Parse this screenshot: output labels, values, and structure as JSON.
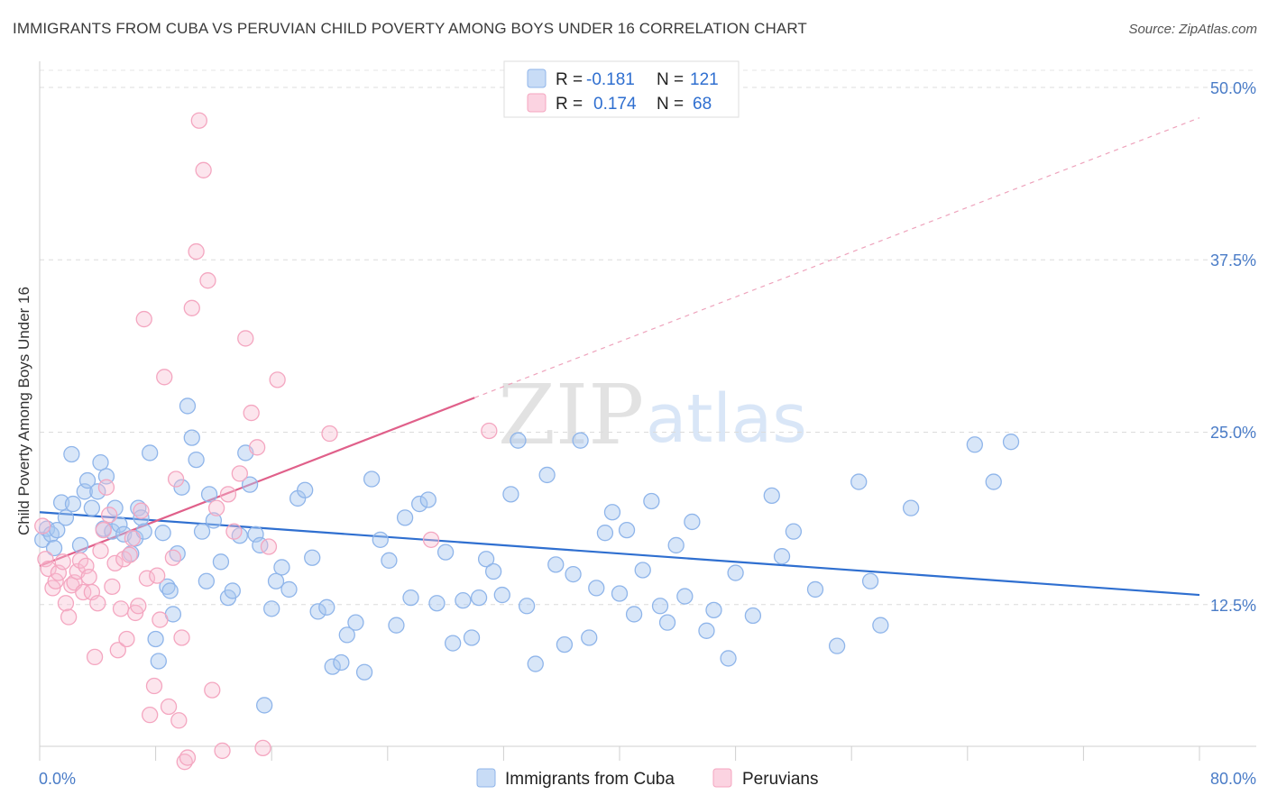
{
  "header": {
    "title": "IMMIGRANTS FROM CUBA VS PERUVIAN CHILD POVERTY AMONG BOYS UNDER 16 CORRELATION CHART",
    "source": "Source: ZipAtlas.com"
  },
  "watermark": {
    "zip": "ZIP",
    "atlas": "atlas"
  },
  "legend": {
    "rows": [
      {
        "r_label": "R =",
        "r_value": "-0.181",
        "n_label": "N =",
        "n_value": "121"
      },
      {
        "r_label": "R =",
        "r_value": "0.174",
        "n_label": "N =",
        "n_value": "68"
      }
    ]
  },
  "bottom_legend": {
    "items": [
      {
        "label": "Immigrants from Cuba"
      },
      {
        "label": "Peruvians"
      }
    ]
  },
  "chart_data": {
    "type": "scatter",
    "title": "IMMIGRANTS FROM CUBA VS PERUVIAN CHILD POVERTY AMONG BOYS UNDER 16 CORRELATION CHART",
    "xlabel": "",
    "ylabel": "Child Poverty Among Boys Under 16",
    "xlim": [
      0,
      80
    ],
    "ylim": [
      0,
      50
    ],
    "x_tick_labels": [
      "0.0%",
      "80.0%"
    ],
    "y_tick_labels": [
      "12.5%",
      "25.0%",
      "37.5%",
      "50.0%"
    ],
    "y_ticks": [
      12.5,
      25.0,
      37.5,
      50.0
    ],
    "grid": true,
    "legend_position": "top-center",
    "colors": {
      "cuba": "#8fb5ea",
      "cuba_line": "#2f6fd0",
      "peru": "#f4a6c0",
      "peru_line": "#e0608a"
    },
    "series": [
      {
        "name": "Immigrants from Cuba",
        "R": -0.181,
        "N": 121,
        "trend": [
          [
            0,
            19.2
          ],
          [
            80,
            13.2
          ]
        ],
        "points": [
          [
            0.2,
            17.2
          ],
          [
            0.5,
            18.0
          ],
          [
            0.8,
            17.6
          ],
          [
            1.0,
            16.6
          ],
          [
            1.2,
            17.9
          ],
          [
            1.5,
            19.9
          ],
          [
            1.8,
            18.8
          ],
          [
            2.2,
            23.4
          ],
          [
            2.3,
            19.8
          ],
          [
            2.8,
            16.8
          ],
          [
            3.1,
            20.7
          ],
          [
            3.3,
            21.5
          ],
          [
            3.6,
            19.5
          ],
          [
            4.0,
            20.7
          ],
          [
            4.2,
            22.8
          ],
          [
            4.4,
            18.0
          ],
          [
            4.6,
            21.8
          ],
          [
            5.0,
            17.8
          ],
          [
            5.2,
            19.5
          ],
          [
            5.5,
            18.3
          ],
          [
            5.8,
            17.6
          ],
          [
            6.3,
            16.2
          ],
          [
            6.6,
            17.3
          ],
          [
            6.8,
            19.5
          ],
          [
            7.0,
            18.8
          ],
          [
            7.2,
            17.8
          ],
          [
            7.6,
            23.5
          ],
          [
            8.0,
            10.0
          ],
          [
            8.2,
            8.4
          ],
          [
            8.5,
            17.7
          ],
          [
            8.8,
            13.8
          ],
          [
            9.0,
            13.5
          ],
          [
            9.2,
            11.8
          ],
          [
            9.5,
            16.2
          ],
          [
            9.8,
            21.0
          ],
          [
            10.2,
            26.9
          ],
          [
            10.5,
            24.6
          ],
          [
            10.8,
            23.0
          ],
          [
            11.2,
            17.8
          ],
          [
            11.5,
            14.2
          ],
          [
            11.7,
            20.5
          ],
          [
            12.0,
            18.6
          ],
          [
            12.5,
            15.6
          ],
          [
            13.0,
            13.0
          ],
          [
            13.3,
            13.5
          ],
          [
            13.8,
            17.5
          ],
          [
            14.2,
            23.5
          ],
          [
            14.5,
            21.2
          ],
          [
            14.9,
            17.6
          ],
          [
            15.2,
            16.8
          ],
          [
            15.5,
            5.2
          ],
          [
            16.0,
            12.2
          ],
          [
            16.3,
            14.2
          ],
          [
            16.7,
            15.2
          ],
          [
            17.2,
            13.6
          ],
          [
            17.8,
            20.2
          ],
          [
            18.3,
            20.8
          ],
          [
            18.8,
            15.9
          ],
          [
            19.2,
            12.0
          ],
          [
            19.8,
            12.3
          ],
          [
            20.2,
            8.0
          ],
          [
            20.8,
            8.3
          ],
          [
            21.2,
            10.3
          ],
          [
            21.8,
            11.2
          ],
          [
            22.4,
            7.6
          ],
          [
            22.9,
            21.6
          ],
          [
            23.5,
            17.2
          ],
          [
            24.1,
            15.7
          ],
          [
            24.6,
            11.0
          ],
          [
            25.2,
            18.8
          ],
          [
            25.6,
            13.0
          ],
          [
            26.2,
            19.8
          ],
          [
            26.8,
            20.1
          ],
          [
            27.4,
            12.6
          ],
          [
            28.0,
            16.3
          ],
          [
            28.5,
            9.7
          ],
          [
            29.2,
            12.8
          ],
          [
            29.8,
            10.1
          ],
          [
            30.3,
            13.0
          ],
          [
            30.8,
            15.8
          ],
          [
            31.3,
            14.9
          ],
          [
            31.9,
            13.2
          ],
          [
            32.5,
            20.5
          ],
          [
            33.0,
            24.4
          ],
          [
            33.6,
            12.4
          ],
          [
            34.2,
            8.2
          ],
          [
            35.0,
            21.9
          ],
          [
            35.6,
            15.4
          ],
          [
            36.2,
            9.6
          ],
          [
            36.8,
            14.7
          ],
          [
            37.3,
            24.4
          ],
          [
            37.9,
            10.1
          ],
          [
            38.4,
            13.7
          ],
          [
            39.0,
            17.7
          ],
          [
            39.5,
            19.2
          ],
          [
            40.0,
            13.3
          ],
          [
            40.5,
            17.9
          ],
          [
            41.0,
            11.8
          ],
          [
            41.6,
            15.0
          ],
          [
            42.2,
            20.0
          ],
          [
            42.8,
            12.4
          ],
          [
            43.3,
            11.2
          ],
          [
            43.9,
            16.8
          ],
          [
            44.5,
            13.1
          ],
          [
            45.0,
            18.5
          ],
          [
            46.0,
            10.6
          ],
          [
            46.5,
            12.1
          ],
          [
            47.5,
            8.6
          ],
          [
            48.0,
            14.8
          ],
          [
            49.2,
            11.7
          ],
          [
            50.5,
            20.4
          ],
          [
            51.2,
            16.0
          ],
          [
            52.0,
            17.8
          ],
          [
            53.5,
            13.6
          ],
          [
            55.0,
            9.5
          ],
          [
            56.5,
            21.4
          ],
          [
            57.3,
            14.2
          ],
          [
            58.0,
            11.0
          ],
          [
            60.1,
            19.5
          ],
          [
            64.5,
            24.1
          ],
          [
            65.8,
            21.4
          ],
          [
            67.0,
            24.3
          ]
        ]
      },
      {
        "name": "Peruvians",
        "R": 0.174,
        "N": 68,
        "trend": [
          [
            0,
            15.3
          ],
          [
            30,
            27.5
          ]
        ],
        "trend_extended": [
          [
            30,
            27.5
          ],
          [
            80,
            47.8
          ]
        ],
        "points": [
          [
            0.2,
            18.2
          ],
          [
            0.4,
            15.8
          ],
          [
            0.6,
            15.1
          ],
          [
            0.9,
            13.7
          ],
          [
            1.1,
            14.2
          ],
          [
            1.3,
            14.8
          ],
          [
            1.6,
            15.6
          ],
          [
            1.8,
            12.6
          ],
          [
            2.0,
            11.6
          ],
          [
            2.2,
            13.9
          ],
          [
            2.4,
            14.1
          ],
          [
            2.6,
            14.9
          ],
          [
            2.8,
            15.7
          ],
          [
            3.0,
            13.4
          ],
          [
            3.2,
            15.3
          ],
          [
            3.4,
            14.5
          ],
          [
            3.6,
            13.4
          ],
          [
            3.8,
            8.7
          ],
          [
            4.0,
            12.6
          ],
          [
            4.2,
            16.4
          ],
          [
            4.4,
            17.9
          ],
          [
            4.6,
            21.0
          ],
          [
            4.8,
            19.0
          ],
          [
            5.0,
            13.8
          ],
          [
            5.2,
            15.5
          ],
          [
            5.4,
            9.2
          ],
          [
            5.6,
            12.2
          ],
          [
            5.8,
            15.8
          ],
          [
            6.0,
            10.0
          ],
          [
            6.2,
            16.1
          ],
          [
            6.4,
            17.3
          ],
          [
            6.6,
            11.9
          ],
          [
            6.8,
            12.4
          ],
          [
            7.0,
            19.3
          ],
          [
            7.2,
            33.2
          ],
          [
            7.4,
            14.4
          ],
          [
            7.6,
            4.5
          ],
          [
            7.9,
            6.6
          ],
          [
            8.1,
            14.6
          ],
          [
            8.3,
            11.4
          ],
          [
            8.6,
            29.0
          ],
          [
            8.9,
            5.1
          ],
          [
            9.2,
            15.9
          ],
          [
            9.4,
            21.6
          ],
          [
            9.6,
            4.1
          ],
          [
            9.8,
            10.1
          ],
          [
            10.0,
            1.1
          ],
          [
            10.2,
            1.4
          ],
          [
            10.5,
            34.0
          ],
          [
            10.8,
            38.1
          ],
          [
            11.0,
            47.6
          ],
          [
            11.3,
            44.0
          ],
          [
            11.6,
            36.0
          ],
          [
            11.9,
            6.3
          ],
          [
            12.2,
            19.5
          ],
          [
            12.6,
            1.9
          ],
          [
            13.0,
            20.5
          ],
          [
            13.4,
            17.8
          ],
          [
            13.8,
            22.0
          ],
          [
            14.2,
            31.8
          ],
          [
            14.6,
            26.4
          ],
          [
            15.0,
            23.9
          ],
          [
            15.4,
            2.1
          ],
          [
            15.8,
            16.7
          ],
          [
            16.4,
            28.8
          ],
          [
            20.0,
            24.9
          ],
          [
            27.0,
            17.2
          ],
          [
            31.0,
            25.1
          ]
        ]
      }
    ]
  }
}
